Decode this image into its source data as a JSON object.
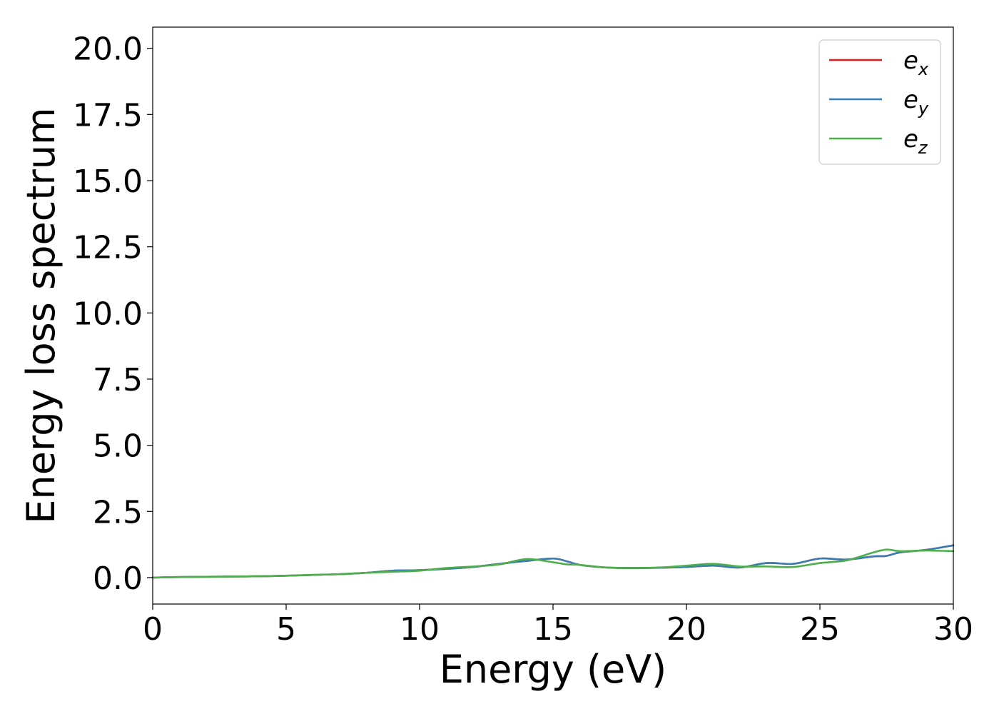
{
  "chart_data": {
    "type": "line",
    "title": "",
    "xlabel": "Energy (eV)",
    "ylabel": "Energy loss spectrum",
    "xlim": [
      0,
      30
    ],
    "ylim": [
      -1.0,
      20.8
    ],
    "xticks": [
      "0",
      "5",
      "10",
      "15",
      "20",
      "25",
      "30"
    ],
    "yticks": [
      "0.0",
      "2.5",
      "5.0",
      "7.5",
      "10.0",
      "12.5",
      "15.0",
      "17.5",
      "20.0"
    ],
    "grid": false,
    "legend_position": "top-right",
    "x": [
      0,
      1,
      2,
      3,
      4,
      5,
      6,
      7,
      8,
      9,
      10,
      11,
      12,
      13,
      14,
      15,
      15.5,
      16,
      17,
      18,
      19,
      20,
      21,
      22,
      23,
      24,
      25,
      26,
      27,
      27.5,
      28,
      29,
      30
    ],
    "series": [
      {
        "name": "e_x",
        "legend_base": "e",
        "legend_sub": "x",
        "color": "#e41a1c",
        "values": [
          0.0,
          0.02,
          0.03,
          0.04,
          0.05,
          0.07,
          0.1,
          0.13,
          0.18,
          0.26,
          0.28,
          0.33,
          0.4,
          0.52,
          0.63,
          0.72,
          0.62,
          0.48,
          0.38,
          0.36,
          0.37,
          0.4,
          0.45,
          0.38,
          0.55,
          0.52,
          0.72,
          0.68,
          0.8,
          0.82,
          0.95,
          1.05,
          1.22
        ]
      },
      {
        "name": "e_y",
        "legend_base": "e",
        "legend_sub": "y",
        "color": "#377eb8",
        "values": [
          0.0,
          0.02,
          0.03,
          0.04,
          0.05,
          0.07,
          0.1,
          0.13,
          0.18,
          0.26,
          0.28,
          0.33,
          0.4,
          0.52,
          0.63,
          0.72,
          0.62,
          0.48,
          0.38,
          0.36,
          0.37,
          0.4,
          0.45,
          0.38,
          0.55,
          0.52,
          0.72,
          0.68,
          0.8,
          0.82,
          0.95,
          1.05,
          1.22
        ]
      },
      {
        "name": "e_z",
        "legend_base": "e",
        "legend_sub": "z",
        "color": "#4daf4a",
        "values": [
          0.0,
          0.02,
          0.03,
          0.04,
          0.05,
          0.07,
          0.1,
          0.13,
          0.18,
          0.22,
          0.26,
          0.36,
          0.42,
          0.5,
          0.7,
          0.58,
          0.5,
          0.48,
          0.38,
          0.36,
          0.38,
          0.45,
          0.52,
          0.42,
          0.42,
          0.4,
          0.55,
          0.65,
          0.95,
          1.06,
          1.0,
          1.02,
          1.0
        ]
      }
    ]
  }
}
